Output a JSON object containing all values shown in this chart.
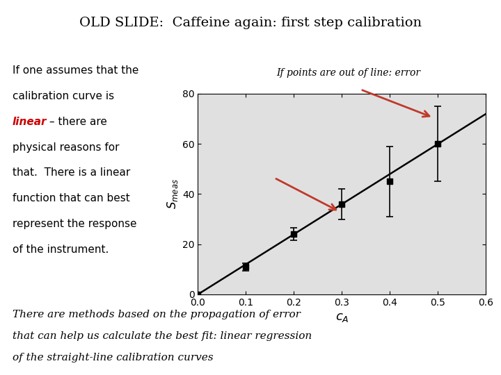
{
  "title": "OLD SLIDE:  Caffeine again: first step calibration",
  "background_color": "#ffffff",
  "plot_bg_color": "#e0e0e0",
  "left_text_lines": [
    "If one assumes that the",
    "calibration curve is",
    "linear – there are",
    "physical reasons for",
    "that.  There is a linear",
    "function that can best",
    "represent the response",
    "of the instrument."
  ],
  "bottom_text_lines": [
    "There are methods based on the propagation of error",
    "that can help us calculate the best fit: linear regression",
    "of the straight-line calibration curves"
  ],
  "annotation_text": "If points are out of line: error",
  "data_x": [
    0.0,
    0.1,
    0.2,
    0.3,
    0.4,
    0.5
  ],
  "data_y": [
    0.0,
    11.0,
    24.0,
    36.0,
    45.0,
    60.0
  ],
  "data_yerr": [
    0.5,
    1.5,
    2.5,
    6.0,
    14.0,
    15.0
  ],
  "fit_x": [
    0.0,
    0.6
  ],
  "fit_y": [
    0.0,
    72.0
  ],
  "xlabel": "$c_A$",
  "ylabel": "$S_{meas}$",
  "xlim": [
    0.0,
    0.6
  ],
  "ylim": [
    0.0,
    80.0
  ],
  "xticks": [
    0.0,
    0.1,
    0.2,
    0.3,
    0.4,
    0.5,
    0.6
  ],
  "yticks": [
    0,
    20,
    40,
    60,
    80
  ],
  "arrow_color": "#c0392b",
  "linear_color": "#cc0000",
  "fit_linewidth": 1.8,
  "marker_size": 5.5
}
